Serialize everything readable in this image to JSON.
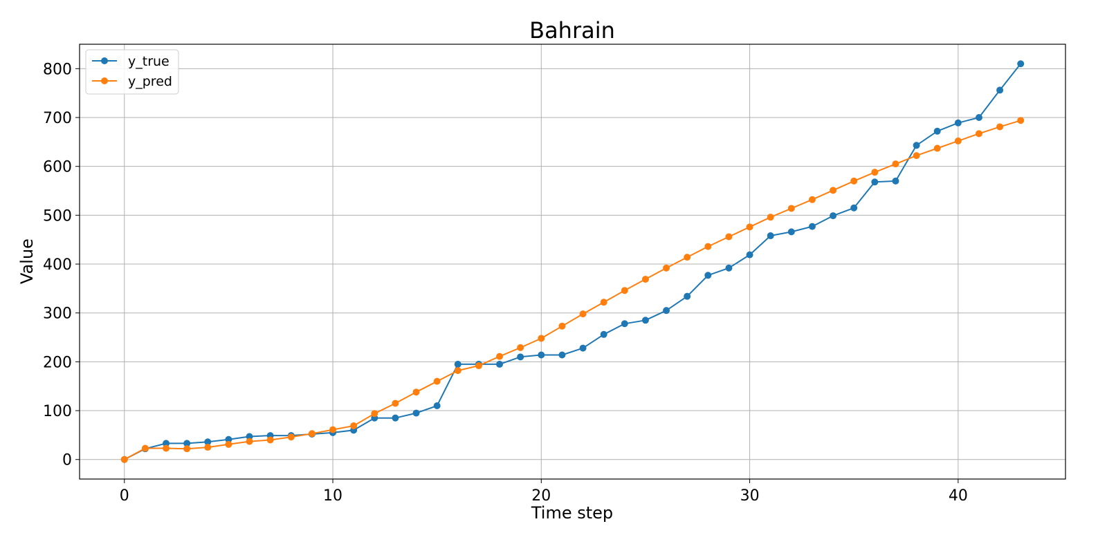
{
  "chart_data": {
    "type": "line",
    "title": "Bahrain",
    "xlabel": "Time step",
    "ylabel": "Value",
    "xlim": [
      -2.15,
      45.15
    ],
    "ylim": [
      -40,
      850
    ],
    "xticks": [
      0,
      10,
      20,
      30,
      40
    ],
    "yticks": [
      0,
      100,
      200,
      300,
      400,
      500,
      600,
      700,
      800
    ],
    "grid": true,
    "legend_position": "upper-left",
    "x": [
      0,
      1,
      2,
      3,
      4,
      5,
      6,
      7,
      8,
      9,
      10,
      11,
      12,
      13,
      14,
      15,
      16,
      17,
      18,
      19,
      20,
      21,
      22,
      23,
      24,
      25,
      26,
      27,
      28,
      29,
      30,
      31,
      32,
      33,
      34,
      35,
      36,
      37,
      38,
      39,
      40,
      41,
      42,
      43
    ],
    "series": [
      {
        "name": "y_true",
        "color": "#1f77b4",
        "values": [
          0,
          22,
          33,
          33,
          36,
          41,
          47,
          49,
          49,
          52,
          55,
          60,
          85,
          85,
          95,
          110,
          195,
          195,
          195,
          210,
          214,
          214,
          228,
          256,
          278,
          285,
          305,
          334,
          377,
          392,
          419,
          458,
          466,
          477,
          499,
          515,
          568,
          570,
          643,
          672,
          689,
          700,
          756,
          810
        ]
      },
      {
        "name": "y_pred",
        "color": "#ff7f0e",
        "values": [
          0,
          23,
          23,
          22,
          25,
          31,
          37,
          40,
          46,
          53,
          61,
          69,
          94,
          115,
          138,
          160,
          182,
          192,
          211,
          229,
          248,
          273,
          298,
          322,
          346,
          369,
          392,
          414,
          436,
          456,
          476,
          496,
          514,
          532,
          551,
          570,
          588,
          605,
          622,
          637,
          652,
          667,
          681,
          694
        ]
      }
    ]
  }
}
